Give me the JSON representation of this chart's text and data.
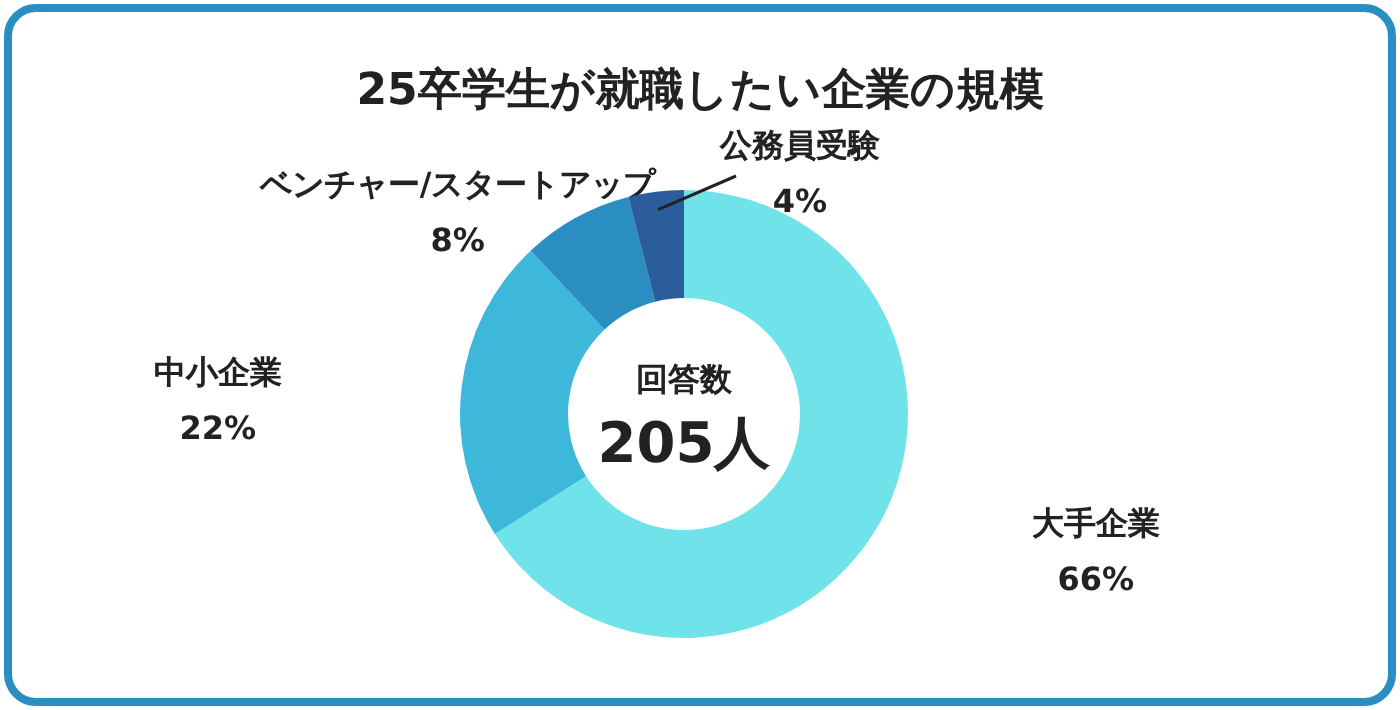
{
  "chart_data": {
    "type": "donut",
    "title": "25卒学生が就職したい企業の規模",
    "categories": [
      "大手企業",
      "中小企業",
      "ベンチャー/スタートアップ",
      "公務員受験"
    ],
    "values": [
      66,
      22,
      8,
      4
    ],
    "colors": [
      "#6fe3e9",
      "#3db7da",
      "#2a8ec2",
      "#2b5c9c"
    ],
    "value_labels": [
      "66%",
      "22%",
      "8%",
      "4%"
    ],
    "annotations": [
      "回答数",
      "205人"
    ]
  }
}
